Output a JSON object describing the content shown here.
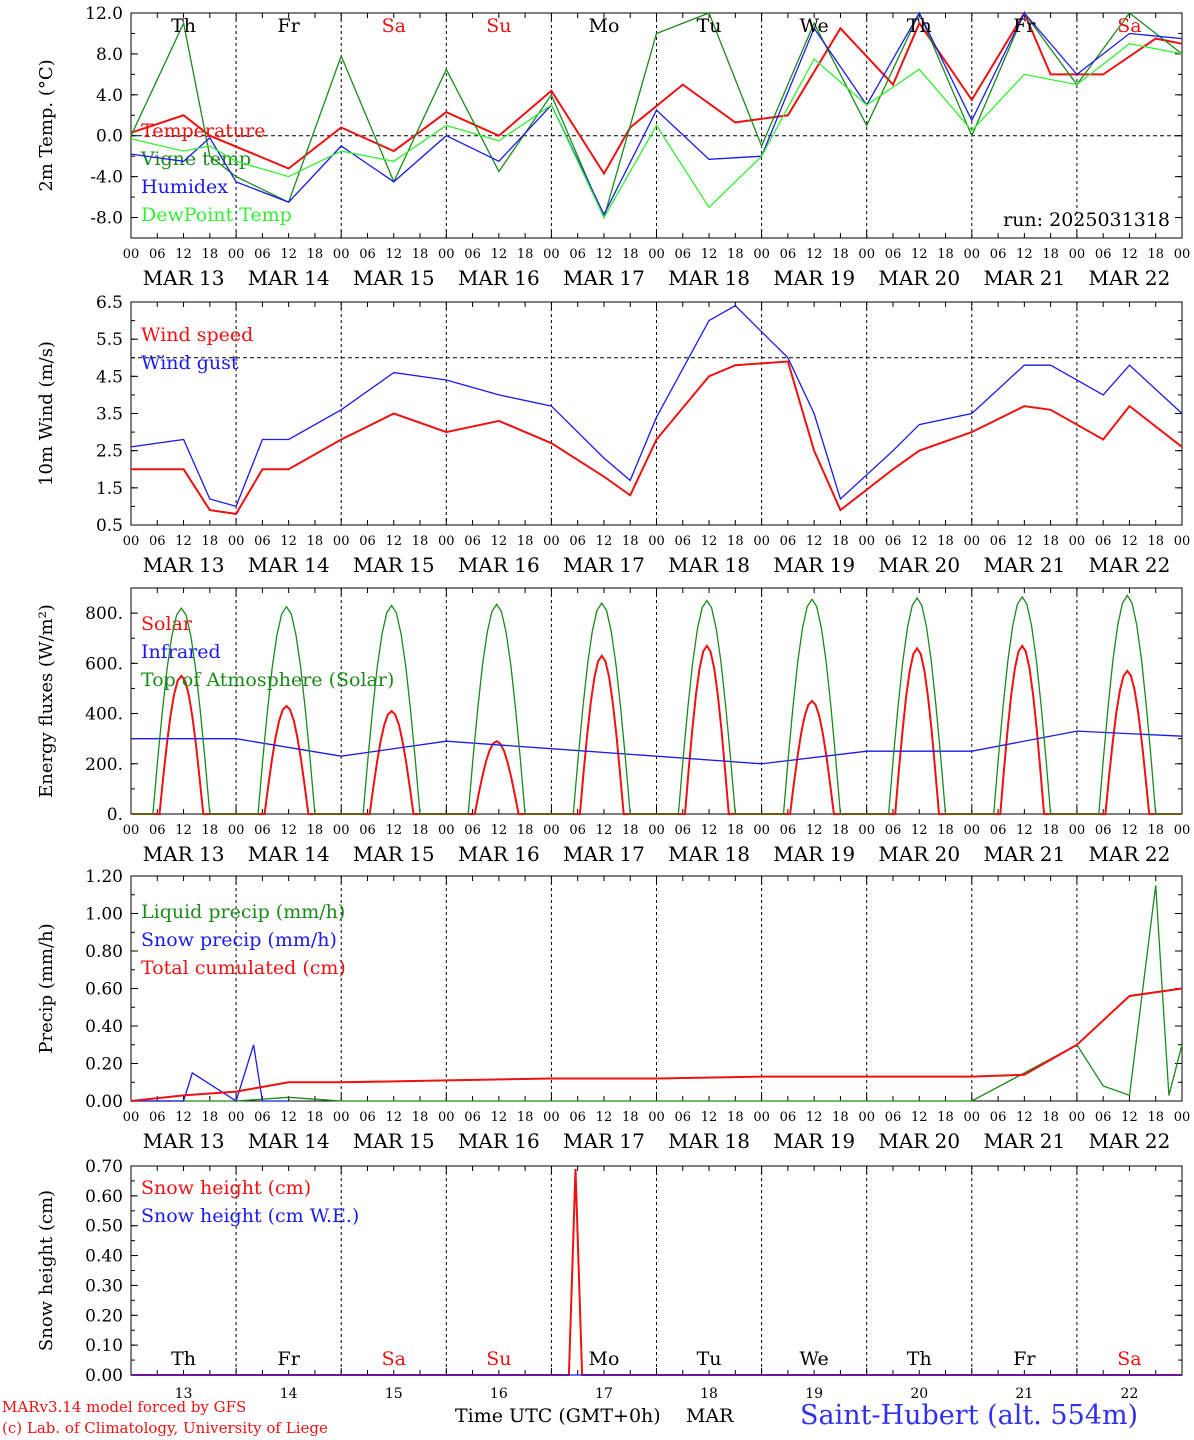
{
  "run_label": "run: 2025031318",
  "colors": {
    "red": "#ee1111",
    "darkgreen": "#1a8a1a",
    "blue": "#1a1aee",
    "lightgreen": "#33ee33",
    "black": "#000000"
  },
  "hour_ticks": [
    "00",
    "06",
    "12",
    "18"
  ],
  "date_labels": [
    "MAR 13",
    "MAR 14",
    "MAR 15",
    "MAR 16",
    "MAR 17",
    "MAR 18",
    "MAR 19",
    "MAR 20",
    "MAR 21",
    "MAR 22"
  ],
  "weekdays": [
    {
      "label": "Th",
      "color": "black"
    },
    {
      "label": "Fr",
      "color": "black"
    },
    {
      "label": "Sa",
      "color": "red"
    },
    {
      "label": "Su",
      "color": "red"
    },
    {
      "label": "Mo",
      "color": "black"
    },
    {
      "label": "Tu",
      "color": "black"
    },
    {
      "label": "We",
      "color": "black"
    },
    {
      "label": "Th",
      "color": "black"
    },
    {
      "label": "Fr",
      "color": "black"
    },
    {
      "label": "Sa",
      "color": "red"
    }
  ],
  "day_numbers": [
    "13",
    "14",
    "15",
    "16",
    "17",
    "18",
    "19",
    "20",
    "21",
    "22"
  ],
  "footer": {
    "model": "MARv3.14 model forced by GFS",
    "lab": "(c) Lab. of Climatology, University of Liege",
    "xaxis": "Time UTC (GMT+0h)",
    "month": "MAR",
    "station": "Saint-Hubert (alt. 554m)"
  },
  "chart_data": [
    {
      "type": "line",
      "ylabel": "2m Temp. (°C)",
      "ylim": [
        -10,
        12
      ],
      "yticks": [
        "-8.0",
        "-4.0",
        "0.0",
        "4.0",
        "8.0",
        "12.0"
      ],
      "ytick_values": [
        -8,
        -4,
        0,
        4,
        8,
        12
      ],
      "ref_line": 0,
      "x_unit": "hours since MAR 13 00 UTC",
      "series": [
        {
          "name": "Temperature",
          "color": "red",
          "x": [
            0,
            12,
            18,
            36,
            48,
            60,
            72,
            84,
            96,
            108,
            114,
            126,
            138,
            150,
            162,
            174,
            180,
            192,
            204,
            210,
            222,
            234,
            240
          ],
          "y": [
            0.3,
            2,
            0,
            -3.2,
            0.8,
            -1.5,
            2.3,
            0,
            4.4,
            -3.7,
            0.8,
            5,
            1.3,
            2,
            10.5,
            5,
            11,
            3.5,
            12,
            6,
            6,
            9.5,
            9
          ]
        },
        {
          "name": "Vigne temp",
          "color": "darkgreen",
          "x": [
            0,
            12,
            18,
            24,
            36,
            48,
            60,
            72,
            84,
            96,
            108,
            120,
            132,
            144,
            156,
            168,
            180,
            192,
            204,
            216,
            228,
            240
          ],
          "y": [
            0,
            11,
            -2,
            -4,
            -6.5,
            7.8,
            -4.5,
            6.5,
            -3.5,
            4,
            -8,
            10,
            12,
            -1,
            11,
            1,
            12,
            0,
            12,
            5,
            12,
            8
          ]
        },
        {
          "name": "Humidex",
          "color": "blue",
          "x": [
            0,
            12,
            18,
            24,
            36,
            48,
            60,
            72,
            84,
            96,
            108,
            120,
            132,
            144,
            156,
            168,
            180,
            192,
            204,
            216,
            228,
            240
          ],
          "y": [
            -1.8,
            -2.5,
            -0.2,
            -4.5,
            -6.5,
            -1,
            -4.5,
            0,
            -2.5,
            3,
            -7.7,
            2.5,
            -2.3,
            -2,
            10.5,
            3,
            12,
            1.5,
            12,
            6,
            10,
            9.5
          ]
        },
        {
          "name": "DewPoint Temp",
          "color": "lightgreen",
          "x": [
            0,
            12,
            18,
            24,
            36,
            48,
            60,
            72,
            84,
            96,
            108,
            120,
            132,
            144,
            156,
            168,
            180,
            192,
            204,
            216,
            228,
            240
          ],
          "y": [
            -0.3,
            -1.5,
            -1,
            -2.5,
            -4,
            -1.5,
            -2.5,
            1,
            -0.5,
            3,
            -8,
            1,
            -7,
            -2,
            7.5,
            3,
            6.5,
            0.5,
            6,
            5,
            9,
            8
          ]
        }
      ]
    },
    {
      "type": "line",
      "ylabel": "10m Wind (m/s)",
      "ylim": [
        0.5,
        6.5
      ],
      "yticks": [
        "0.5",
        "1.5",
        "2.5",
        "3.5",
        "4.5",
        "5.5",
        "6.5"
      ],
      "ytick_values": [
        0.5,
        1.5,
        2.5,
        3.5,
        4.5,
        5.5,
        6.5
      ],
      "ref_line": 5,
      "series": [
        {
          "name": "Wind speed",
          "color": "red",
          "x": [
            0,
            12,
            18,
            24,
            30,
            36,
            48,
            60,
            72,
            84,
            96,
            108,
            114,
            120,
            132,
            138,
            150,
            156,
            162,
            174,
            180,
            192,
            204,
            210,
            222,
            228,
            240
          ],
          "y": [
            2,
            2,
            0.9,
            0.8,
            2,
            2,
            2.8,
            3.5,
            3,
            3.3,
            2.7,
            1.8,
            1.3,
            2.8,
            4.5,
            4.8,
            4.9,
            2.5,
            0.9,
            2,
            2.5,
            3,
            3.7,
            3.6,
            2.8,
            3.7,
            2.6
          ]
        },
        {
          "name": "Wind gust",
          "color": "blue",
          "x": [
            0,
            12,
            18,
            24,
            30,
            36,
            48,
            60,
            72,
            84,
            96,
            108,
            114,
            120,
            132,
            138,
            150,
            156,
            162,
            174,
            180,
            192,
            204,
            210,
            222,
            228,
            240
          ],
          "y": [
            2.6,
            2.8,
            1.2,
            1,
            2.8,
            2.8,
            3.6,
            4.6,
            4.4,
            4,
            3.7,
            2.3,
            1.7,
            3.4,
            6,
            6.4,
            5,
            3.5,
            1.2,
            2.5,
            3.2,
            3.5,
            4.8,
            4.8,
            4,
            4.8,
            3.5
          ]
        }
      ]
    },
    {
      "type": "line",
      "ylabel": "Energy fluxes (W/m²)",
      "ylim": [
        0,
        900
      ],
      "yticks": [
        "0.",
        "200.",
        "400.",
        "600.",
        "800."
      ],
      "ytick_values": [
        0,
        200,
        400,
        600,
        800
      ],
      "series": [
        {
          "name": "Solar",
          "color": "red",
          "daily_peaks": [
            550,
            430,
            410,
            290,
            630,
            670,
            450,
            660,
            670,
            570
          ]
        },
        {
          "name": "Infrared",
          "color": "blue",
          "x": [
            0,
            24,
            48,
            72,
            96,
            120,
            144,
            168,
            192,
            216,
            240
          ],
          "y": [
            300,
            300,
            230,
            290,
            260,
            230,
            200,
            250,
            250,
            330,
            310
          ]
        },
        {
          "name": "Top of Atmosphere (Solar)",
          "color": "darkgreen",
          "daily_peaks": [
            820,
            825,
            830,
            835,
            840,
            850,
            855,
            860,
            865,
            870
          ]
        }
      ]
    },
    {
      "type": "line",
      "ylabel": "Precip (mm/h)",
      "ylim": [
        0,
        1.2
      ],
      "yticks": [
        "0.00",
        "0.20",
        "0.40",
        "0.60",
        "0.80",
        "1.00",
        "1.20"
      ],
      "ytick_values": [
        0,
        0.2,
        0.4,
        0.6,
        0.8,
        1.0,
        1.2
      ],
      "series": [
        {
          "name": "Liquid precip (mm/h)",
          "color": "darkgreen",
          "x": [
            0,
            12,
            24,
            36,
            48,
            96,
            192,
            216,
            222,
            228,
            234,
            237,
            240
          ],
          "y": [
            0,
            0,
            0,
            0.02,
            0,
            0,
            0,
            0.3,
            0.08,
            0.03,
            1.15,
            0.03,
            0.3
          ]
        },
        {
          "name": "Snow precip (mm/h)",
          "color": "blue",
          "x": [
            0,
            12,
            14,
            24,
            28,
            30,
            36
          ],
          "y": [
            0,
            0,
            0.15,
            0,
            0.3,
            0,
            0
          ]
        },
        {
          "name": "Total cumulated (cm)",
          "color": "red",
          "x": [
            0,
            12,
            24,
            36,
            48,
            72,
            96,
            120,
            144,
            168,
            192,
            204,
            216,
            228,
            240
          ],
          "y": [
            0,
            0.03,
            0.05,
            0.1,
            0.1,
            0.11,
            0.12,
            0.12,
            0.13,
            0.13,
            0.13,
            0.14,
            0.3,
            0.56,
            0.6
          ]
        }
      ]
    },
    {
      "type": "line",
      "ylabel": "Snow height (cm)",
      "ylim": [
        0,
        0.7
      ],
      "yticks": [
        "0.00",
        "0.10",
        "0.20",
        "0.30",
        "0.40",
        "0.50",
        "0.60",
        "0.70"
      ],
      "ytick_values": [
        0,
        0.1,
        0.2,
        0.3,
        0.4,
        0.5,
        0.6,
        0.7
      ],
      "series": [
        {
          "name": "Snow height (cm)",
          "color": "red",
          "x": [
            0,
            100,
            101.5,
            103,
            240
          ],
          "y": [
            0,
            0,
            0.69,
            0,
            0
          ]
        },
        {
          "name": "Snow height (cm W.E.)",
          "color": "blue",
          "x": [
            0,
            240
          ],
          "y": [
            0,
            0
          ]
        }
      ]
    }
  ]
}
